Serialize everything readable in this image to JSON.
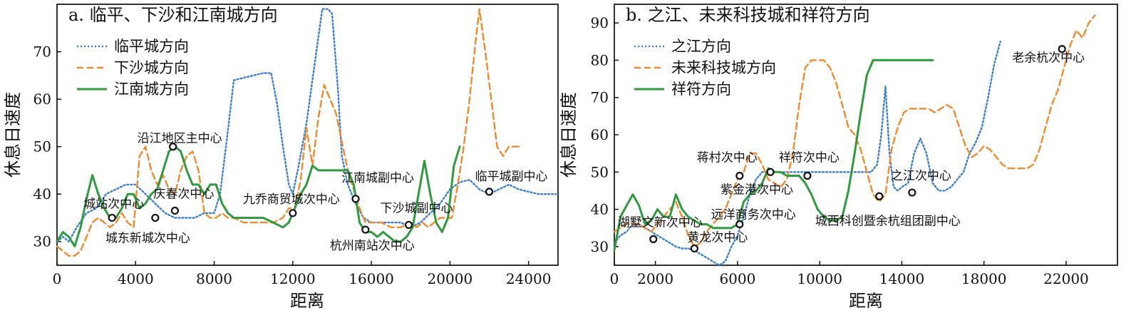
{
  "chart_data": [
    {
      "type": "line",
      "title": "a. 临平、下沙和江南城方向",
      "xlabel": "距离",
      "ylabel": "休息日速度",
      "xlim": [
        0,
        25500
      ],
      "ylim": [
        25,
        80
      ],
      "xticks": [
        0,
        4000,
        8000,
        12000,
        16000,
        20000,
        24000
      ],
      "xtick_labels": [
        "0",
        "4000",
        "8000",
        "12000",
        "16000",
        "20000",
        "24000"
      ],
      "yticks": [
        30,
        40,
        50,
        60,
        70
      ],
      "ytick_labels": [
        "30",
        "40",
        "50",
        "60",
        "70"
      ],
      "legend": "top-left",
      "series": [
        {
          "name": "临平城方向",
          "style": "dotted",
          "color": "#3a7fd0",
          "x": [
            0,
            300,
            600,
            1000,
            1500,
            2000,
            2500,
            3000,
            3500,
            4000,
            4500,
            5000,
            5500,
            6000,
            6500,
            7000,
            7500,
            8000,
            8300,
            8600,
            9000,
            9500,
            10000,
            10500,
            10900,
            11200,
            11500,
            11800,
            12000,
            12300,
            12700,
            13200,
            13500,
            13800,
            14000,
            14300,
            14500,
            14800,
            15200,
            15600,
            16000,
            16500,
            17000,
            17500,
            18000,
            18500,
            19000,
            19500,
            20000,
            20500,
            21000,
            21500,
            22000,
            22500,
            23000,
            23500,
            24000,
            24500,
            25000,
            25400
          ],
          "y": [
            30,
            31,
            30,
            33,
            36,
            37,
            40,
            41,
            42,
            42,
            40,
            38,
            36,
            35,
            35,
            35,
            36,
            36,
            40,
            50,
            64,
            64.5,
            65,
            65.5,
            65.5,
            59,
            50,
            42,
            40,
            46,
            55,
            70,
            79,
            79,
            78,
            62,
            48,
            42,
            38,
            35,
            34,
            34,
            34,
            34,
            33,
            34,
            36,
            38,
            41,
            42.5,
            43,
            41,
            40,
            41,
            42,
            41,
            40.5,
            40,
            40,
            40
          ]
        },
        {
          "name": "下沙城方向",
          "style": "dashed",
          "color": "#f08a2c",
          "x": [
            0,
            300,
            600,
            900,
            1200,
            1500,
            1800,
            2100,
            2400,
            2700,
            3000,
            3300,
            3600,
            3900,
            4200,
            4500,
            4800,
            5100,
            5400,
            5700,
            6000,
            6300,
            6600,
            6900,
            7200,
            7500,
            7800,
            8100,
            8400,
            8700,
            9000,
            9500,
            10000,
            10500,
            11000,
            11500,
            11800,
            12100,
            12400,
            12700,
            13000,
            13300,
            13600,
            13900,
            14200,
            14500,
            14800,
            15100,
            15400,
            15700,
            16000,
            16500,
            17000,
            17500,
            18000,
            18300,
            18600,
            18900,
            19200,
            19500,
            19800,
            20100,
            20400,
            20700,
            21000,
            21300,
            21500,
            21800,
            22100,
            22400,
            22700,
            23000,
            23300,
            23600
          ],
          "y": [
            29,
            28,
            27,
            27,
            28,
            31,
            34,
            35,
            34,
            33,
            34,
            36,
            34,
            33,
            48,
            50,
            45,
            42,
            44,
            41,
            40,
            45,
            48,
            49,
            45,
            36,
            35,
            35,
            36,
            35,
            35,
            34,
            34,
            34,
            34,
            35,
            37,
            37,
            43,
            54,
            46,
            56,
            63,
            60,
            57,
            51,
            45,
            41,
            37,
            34,
            34,
            34,
            33,
            33,
            34,
            33,
            34,
            33,
            34,
            35,
            35,
            35,
            42,
            50,
            60,
            72,
            79,
            70,
            60,
            50,
            48,
            50,
            50,
            50
          ]
        },
        {
          "name": "江南城方向",
          "style": "solid",
          "color": "#2f9a3e",
          "x": [
            0,
            300,
            600,
            900,
            1200,
            1500,
            1800,
            2100,
            2400,
            2700,
            3000,
            3300,
            3600,
            3900,
            4200,
            4500,
            4800,
            5100,
            5400,
            5700,
            6000,
            6300,
            6600,
            6900,
            7200,
            7500,
            7800,
            8100,
            8400,
            8700,
            9000,
            9500,
            10000,
            10500,
            11000,
            11500,
            11800,
            12100,
            12400,
            12700,
            13000,
            13300,
            13600,
            13900,
            14200,
            14500,
            14800,
            15100,
            15400,
            15700,
            16000,
            16300,
            16600,
            16900,
            17200,
            17500,
            17800,
            18100,
            18400,
            18700,
            19000,
            19300,
            19600,
            19900,
            20200,
            20500
          ],
          "y": [
            30,
            32,
            31,
            29,
            33,
            39,
            44,
            40,
            37,
            35,
            35,
            37,
            40,
            40,
            37,
            38,
            40,
            41,
            45,
            49,
            50,
            49,
            45,
            42,
            42,
            40,
            42,
            42,
            38,
            36,
            35,
            35,
            35,
            35,
            34,
            33,
            34,
            37,
            40,
            42,
            46,
            45,
            45,
            45,
            45,
            45,
            45,
            42,
            34,
            32,
            32,
            31,
            32,
            31,
            30,
            30,
            31,
            33,
            40,
            47,
            40,
            34,
            32,
            35,
            46,
            50
          ]
        }
      ],
      "annotations": [
        {
          "text": "沿江地区主中心",
          "x": 5900,
          "y": 50
        },
        {
          "text": "城站次中心",
          "x": 2800,
          "y": 35
        },
        {
          "text": "庆春次中心",
          "x": 6000,
          "y": 36.5
        },
        {
          "text": "城东新城次中心",
          "x": 5000,
          "y": 35
        },
        {
          "text": "九乔商贸城次中心",
          "x": 12000,
          "y": 36
        },
        {
          "text": "江南城副中心",
          "x": 15200,
          "y": 39
        },
        {
          "text": "杭州南站次中心",
          "x": 15700,
          "y": 32.5
        },
        {
          "text": "下沙城副中心",
          "x": 17900,
          "y": 33.5
        },
        {
          "text": "临平城副中心",
          "x": 22000,
          "y": 40.5
        }
      ]
    },
    {
      "type": "line",
      "title": "b. 之江、未来科技城和祥符方向",
      "xlabel": "距离",
      "ylabel": "休息日速度",
      "xlim": [
        0,
        24500
      ],
      "ylim": [
        25,
        95
      ],
      "xticks": [
        0,
        2000,
        6000,
        10000,
        14000,
        18000,
        22000
      ],
      "xtick_labels": [
        "0",
        "2000",
        "6000",
        "10000",
        "14000",
        "18000",
        "22000"
      ],
      "yticks": [
        30,
        40,
        50,
        60,
        70,
        80,
        90
      ],
      "ytick_labels": [
        "30",
        "40",
        "50",
        "60",
        "70",
        "80",
        "90"
      ],
      "legend": "top-left",
      "series": [
        {
          "name": "之江方向",
          "style": "dotted",
          "color": "#3a7fd0",
          "x": [
            0,
            300,
            600,
            900,
            1200,
            1500,
            1800,
            2100,
            2400,
            2700,
            3000,
            3300,
            3600,
            3900,
            4200,
            4500,
            4800,
            5100,
            5400,
            5700,
            6000,
            6300,
            6600,
            6900,
            7200,
            7500,
            7800,
            8100,
            8400,
            8700,
            9000,
            9500,
            10000,
            10500,
            11000,
            11500,
            12000,
            12500,
            12800,
            13000,
            13200,
            13400,
            13600,
            13800,
            14000,
            14300,
            14600,
            14900,
            15200,
            15500,
            15800,
            16100,
            16400,
            16700,
            17000,
            17300,
            17600,
            17900,
            18200,
            18500,
            18800
          ],
          "y": [
            31,
            33,
            34,
            36,
            36,
            35,
            34,
            33,
            32,
            31,
            30,
            29.5,
            29.5,
            29,
            28,
            27,
            26,
            25,
            26,
            30,
            33,
            38,
            44,
            48,
            50,
            50,
            50,
            50,
            50,
            50,
            50,
            50,
            50,
            50,
            50,
            50,
            50,
            50,
            52,
            60,
            73,
            55,
            46,
            45,
            46,
            47,
            55,
            59,
            55,
            47,
            45,
            45,
            46,
            48,
            50,
            55,
            58,
            62,
            70,
            79,
            85
          ]
        },
        {
          "name": "未来科技城方向",
          "style": "dashed",
          "color": "#f08a2c",
          "x": [
            0,
            300,
            600,
            900,
            1200,
            1500,
            1800,
            2100,
            2400,
            2700,
            3000,
            3300,
            3600,
            3900,
            4200,
            4500,
            4800,
            5100,
            5400,
            5700,
            6000,
            6300,
            6600,
            6900,
            7200,
            7500,
            7800,
            8100,
            8400,
            8700,
            9000,
            9300,
            9600,
            9900,
            10200,
            10500,
            10800,
            11100,
            11400,
            11700,
            12000,
            12300,
            12600,
            12900,
            13200,
            13500,
            13800,
            14100,
            14400,
            14700,
            15000,
            15300,
            15600,
            15900,
            16200,
            16500,
            16800,
            17100,
            17400,
            17700,
            18000,
            18300,
            18600,
            18900,
            19200,
            19500,
            19800,
            20100,
            20400,
            20700,
            21000,
            21300,
            21600,
            21900,
            22200,
            22500,
            22800,
            23100,
            23400
          ],
          "y": [
            34,
            35,
            36,
            36,
            36,
            35,
            34,
            36,
            38,
            40,
            42,
            38,
            33,
            30,
            31,
            34,
            36,
            38,
            40,
            44,
            48,
            50,
            55,
            55,
            52,
            48,
            47,
            46,
            48,
            55,
            68,
            78,
            80,
            80,
            80,
            78,
            74,
            68,
            62,
            60,
            56,
            50,
            44,
            42,
            44,
            56,
            62,
            66,
            67,
            67,
            67,
            67,
            66,
            67,
            68,
            67,
            62,
            57,
            54,
            55,
            57,
            56,
            54,
            52,
            51,
            51,
            51,
            51,
            52,
            56,
            62,
            68,
            72,
            78,
            84,
            88,
            86,
            90,
            92
          ]
        },
        {
          "name": "祥符方向",
          "style": "solid",
          "color": "#2f9a3e",
          "x": [
            0,
            300,
            600,
            900,
            1200,
            1500,
            1800,
            2100,
            2400,
            2700,
            3000,
            3300,
            3600,
            3900,
            4200,
            4500,
            4800,
            5100,
            5400,
            5700,
            6000,
            6300,
            6600,
            6900,
            7200,
            7500,
            7800,
            8100,
            8400,
            8700,
            9000,
            9300,
            9600,
            9900,
            10200,
            10500,
            10800,
            11100,
            11400,
            11700,
            12000,
            12300,
            12600,
            12900,
            13200,
            13500,
            13800,
            14100,
            14400,
            14700,
            15000,
            15300,
            15500
          ],
          "y": [
            29,
            38,
            41,
            44,
            41,
            36,
            37,
            40,
            38,
            38,
            44,
            40,
            38,
            37,
            36,
            36,
            35,
            35,
            35,
            35,
            36,
            42,
            44,
            45,
            47,
            51,
            50,
            50,
            49,
            49,
            49,
            47,
            44,
            40,
            38,
            37,
            37,
            38,
            45,
            55,
            66,
            76,
            80,
            80,
            80,
            80,
            80,
            80,
            80,
            80,
            80,
            80,
            80
          ]
        }
      ],
      "annotations": [
        {
          "text": "蒋村次中心",
          "x": 6100,
          "y": 49
        },
        {
          "text": "祥符次中心",
          "x": 9400,
          "y": 49
        },
        {
          "text": "紫金港次中心",
          "x": 7600,
          "y": 50
        },
        {
          "text": "远洋商务次中心",
          "x": 6100,
          "y": 36
        },
        {
          "text": "湖墅文新次中心",
          "x": 1900,
          "y": 32
        },
        {
          "text": "黄龙次中心",
          "x": 3900,
          "y": 29.5
        },
        {
          "text": "城西科创暨余杭组团副中心",
          "x": 12900,
          "y": 43.5
        },
        {
          "text": "之江次中心",
          "x": 14500,
          "y": 44.5
        },
        {
          "text": "老余杭次中心",
          "x": 21800,
          "y": 83
        }
      ]
    }
  ]
}
